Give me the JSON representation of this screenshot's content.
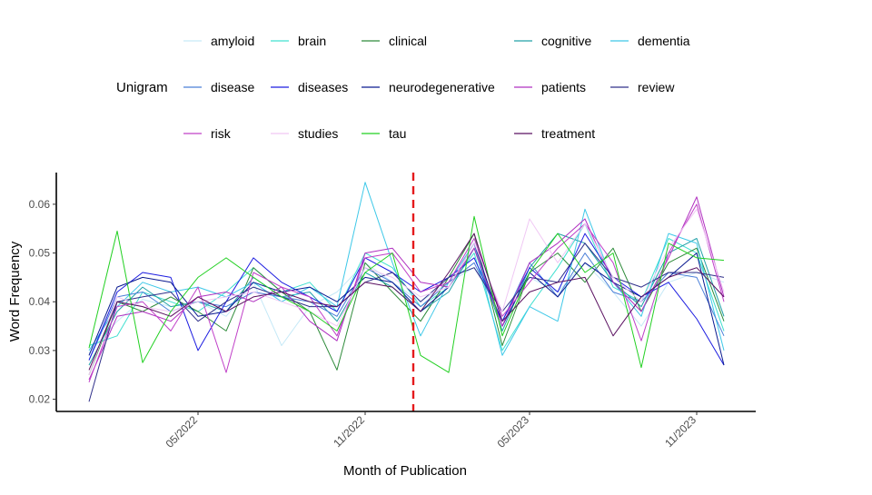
{
  "chart_data": {
    "type": "line",
    "xlabel": "Month of Publication",
    "ylabel": "Word Frequency",
    "ylim": [
      0.0175,
      0.0665
    ],
    "yticks": [
      0.02,
      0.03,
      0.04,
      0.05,
      0.06
    ],
    "ytick_labels": [
      "0.02",
      "0.03",
      "0.04",
      "0.05",
      "0.06"
    ],
    "x": [
      "2022-01",
      "2022-02",
      "2022-03",
      "2022-04",
      "2022-05",
      "2022-06",
      "2022-07",
      "2022-08",
      "2022-09",
      "2022-10",
      "2022-11",
      "2022-12",
      "2023-01",
      "2023-02",
      "2023-03",
      "2023-04",
      "2023-05",
      "2023-06",
      "2023-07",
      "2023-08",
      "2023-09",
      "2023-10",
      "2023-11",
      "2023-12"
    ],
    "xticks": [
      "2022-05",
      "2022-11",
      "2023-05",
      "2023-11"
    ],
    "xtick_labels": [
      "05/2022",
      "11/2022",
      "05/2023",
      "11/2023"
    ],
    "vline": {
      "x": "2023-01-07",
      "color": "#e41a1c",
      "style": "dashed"
    },
    "legend": {
      "title": "Unigram",
      "position": "top"
    },
    "grid": false,
    "series": [
      {
        "name": "amyloid",
        "color": "#c6e9f7",
        "values": [
          0.0295,
          0.036,
          0.0405,
          0.039,
          0.04,
          0.037,
          0.044,
          0.031,
          0.039,
          0.042,
          0.048,
          0.044,
          0.04,
          0.044,
          0.047,
          0.038,
          0.045,
          0.042,
          0.048,
          0.042,
          0.035,
          0.044,
          0.046,
          0.044
        ]
      },
      {
        "name": "brain",
        "color": "#40e0d0",
        "values": [
          0.031,
          0.033,
          0.042,
          0.04,
          0.038,
          0.042,
          0.047,
          0.042,
          0.044,
          0.038,
          0.05,
          0.047,
          0.039,
          0.043,
          0.05,
          0.03,
          0.039,
          0.047,
          0.056,
          0.043,
          0.04,
          0.053,
          0.05,
          0.034
        ]
      },
      {
        "name": "clinical",
        "color": "#2e8b3a",
        "values": [
          0.025,
          0.04,
          0.038,
          0.041,
          0.038,
          0.034,
          0.047,
          0.042,
          0.038,
          0.026,
          0.048,
          0.042,
          0.036,
          0.045,
          0.054,
          0.031,
          0.046,
          0.05,
          0.044,
          0.051,
          0.038,
          0.048,
          0.051,
          0.036
        ]
      },
      {
        "name": "cognitive",
        "color": "#20a0a8",
        "values": [
          0.027,
          0.038,
          0.043,
          0.039,
          0.04,
          0.038,
          0.045,
          0.041,
          0.042,
          0.036,
          0.046,
          0.043,
          0.038,
          0.042,
          0.051,
          0.034,
          0.047,
          0.054,
          0.052,
          0.044,
          0.039,
          0.05,
          0.053,
          0.037
        ]
      },
      {
        "name": "dementia",
        "color": "#3ec8e8",
        "values": [
          0.03,
          0.039,
          0.044,
          0.042,
          0.043,
          0.041,
          0.044,
          0.04,
          0.043,
          0.039,
          0.0645,
          0.048,
          0.033,
          0.044,
          0.052,
          0.029,
          0.039,
          0.036,
          0.059,
          0.044,
          0.037,
          0.054,
          0.052,
          0.03
        ]
      },
      {
        "name": "disease",
        "color": "#4a7fd8",
        "values": [
          0.028,
          0.041,
          0.042,
          0.038,
          0.04,
          0.039,
          0.042,
          0.041,
          0.04,
          0.037,
          0.047,
          0.044,
          0.039,
          0.044,
          0.048,
          0.036,
          0.048,
          0.041,
          0.05,
          0.042,
          0.04,
          0.046,
          0.045,
          0.033
        ]
      },
      {
        "name": "diseases",
        "color": "#1c1ce0",
        "values": [
          0.028,
          0.042,
          0.046,
          0.045,
          0.03,
          0.04,
          0.049,
          0.044,
          0.041,
          0.038,
          0.049,
          0.046,
          0.042,
          0.045,
          0.049,
          0.036,
          0.047,
          0.042,
          0.054,
          0.045,
          0.041,
          0.044,
          0.0365,
          0.027
        ]
      },
      {
        "name": "neurodegenerative",
        "color": "#0a1a90",
        "values": [
          0.029,
          0.043,
          0.045,
          0.044,
          0.037,
          0.038,
          0.044,
          0.042,
          0.043,
          0.04,
          0.045,
          0.044,
          0.038,
          0.043,
          0.052,
          0.035,
          0.046,
          0.041,
          0.048,
          0.044,
          0.041,
          0.045,
          0.05,
          0.027
        ]
      },
      {
        "name": "patients",
        "color": "#b030c0",
        "values": [
          0.024,
          0.037,
          0.038,
          0.036,
          0.041,
          0.042,
          0.04,
          0.043,
          0.036,
          0.032,
          0.05,
          0.051,
          0.044,
          0.043,
          0.051,
          0.035,
          0.048,
          0.052,
          0.057,
          0.044,
          0.038,
          0.049,
          0.0615,
          0.041
        ]
      },
      {
        "name": "review",
        "color": "#30308a",
        "values": [
          0.0195,
          0.04,
          0.041,
          0.042,
          0.036,
          0.04,
          0.043,
          0.041,
          0.039,
          0.039,
          0.044,
          0.046,
          0.04,
          0.045,
          0.047,
          0.038,
          0.045,
          0.044,
          0.052,
          0.045,
          0.043,
          0.046,
          0.046,
          0.045
        ]
      },
      {
        "name": "risk",
        "color": "#c040c8",
        "values": [
          0.0235,
          0.039,
          0.04,
          0.034,
          0.043,
          0.0255,
          0.046,
          0.043,
          0.041,
          0.033,
          0.049,
          0.05,
          0.042,
          0.044,
          0.053,
          0.037,
          0.044,
          0.051,
          0.056,
          0.048,
          0.032,
          0.05,
          0.06,
          0.04
        ]
      },
      {
        "name": "studies",
        "color": "#f0c8f4",
        "values": [
          0.025,
          0.041,
          0.039,
          0.038,
          0.04,
          0.041,
          0.042,
          0.04,
          0.038,
          0.035,
          0.047,
          0.045,
          0.041,
          0.043,
          0.052,
          0.038,
          0.057,
          0.048,
          0.056,
          0.045,
          0.04,
          0.051,
          0.059,
          0.042
        ]
      },
      {
        "name": "tau",
        "color": "#22d022",
        "values": [
          0.0305,
          0.0545,
          0.0275,
          0.038,
          0.045,
          0.049,
          0.045,
          0.041,
          0.038,
          0.034,
          0.046,
          0.05,
          0.029,
          0.0255,
          0.0575,
          0.033,
          0.046,
          0.054,
          0.046,
          0.05,
          0.0265,
          0.052,
          0.049,
          0.0485
        ]
      },
      {
        "name": "treatment",
        "color": "#5a1060",
        "values": [
          0.026,
          0.04,
          0.039,
          0.037,
          0.041,
          0.038,
          0.041,
          0.042,
          0.04,
          0.039,
          0.044,
          0.043,
          0.038,
          0.046,
          0.054,
          0.036,
          0.042,
          0.044,
          0.045,
          0.033,
          0.041,
          0.045,
          0.047,
          0.041
        ]
      }
    ]
  }
}
